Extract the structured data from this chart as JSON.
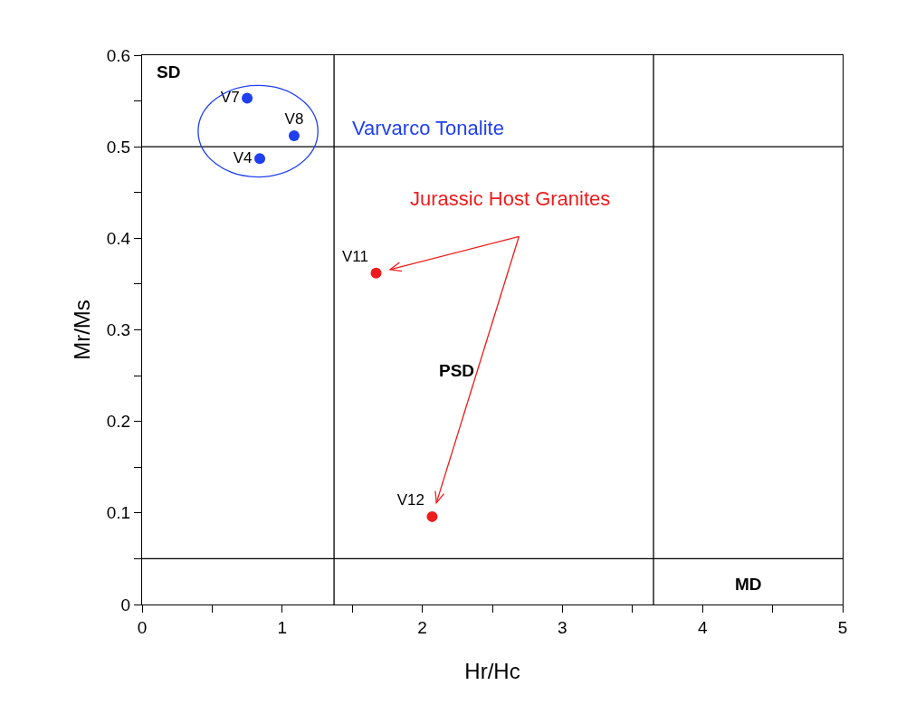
{
  "chart_data": {
    "type": "scatter",
    "xlabel": "Hr/Hc",
    "ylabel": "Mr/Ms",
    "xlim": [
      0,
      5
    ],
    "ylim": [
      0,
      0.6
    ],
    "xticks": [
      0,
      {
        "value": 0.5,
        "label": null
      },
      1,
      {
        "value": 1.5,
        "label": null
      },
      2,
      {
        "value": 2.5,
        "label": null
      },
      3,
      {
        "value": 3.5,
        "label": null
      },
      4,
      {
        "value": 4.5,
        "label": null
      },
      5
    ],
    "yticks": [
      0,
      {
        "value": 0.05,
        "label": null
      },
      0.1,
      {
        "value": 0.15,
        "label": null
      },
      0.2,
      {
        "value": 0.25,
        "label": null
      },
      0.3,
      {
        "value": 0.35,
        "label": null
      },
      0.4,
      {
        "value": 0.45,
        "label": null
      },
      0.5,
      {
        "value": 0.55,
        "label": null
      },
      0.6
    ],
    "grid": false,
    "legend": false,
    "marker": "circle",
    "series": [
      {
        "name": "Varvarco Tonalite",
        "color": "#1f3ff0",
        "x": [
          0.75,
          1.085,
          0.84
        ],
        "values": [
          0.553,
          0.512,
          0.487
        ],
        "value_labels": [
          "V7",
          "V8",
          "V4"
        ]
      },
      {
        "name": "Jurassic Host Granites",
        "color": "#ee1c1c",
        "x": [
          1.67,
          2.07
        ],
        "values": [
          0.362,
          0.096
        ],
        "value_labels": [
          "V11",
          "V12"
        ]
      }
    ],
    "ref_lines": [
      {
        "axis": "x",
        "value": 1.37,
        "color": "#000000"
      },
      {
        "axis": "x",
        "value": 3.65,
        "color": "#000000"
      },
      {
        "axis": "y",
        "value": 0.5,
        "color": "#000000"
      },
      {
        "axis": "y",
        "value": 0.05,
        "color": "#000000"
      }
    ],
    "annotations": [
      "SD",
      "PSD",
      "MD"
    ]
  }
}
